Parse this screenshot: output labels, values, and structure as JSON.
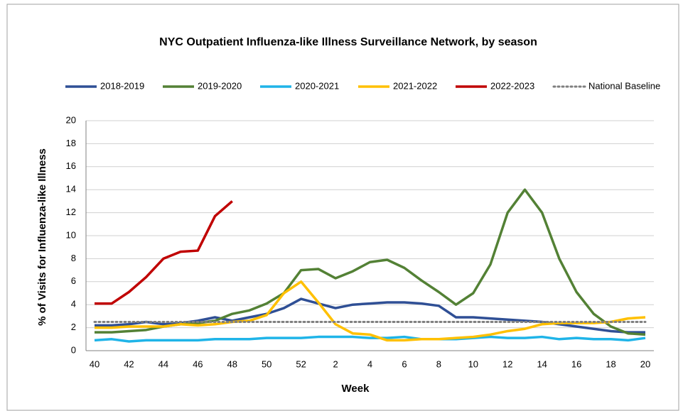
{
  "chart_data": {
    "type": "line",
    "title": "NYC Outpatient Influenza-like Illness Surveillance Network, by season",
    "x_label": "Week",
    "y_label": "% of Visits for Influenza-like Illness",
    "categories": [
      "40",
      null,
      "42",
      null,
      "44",
      null,
      "46",
      null,
      "48",
      null,
      "50",
      null,
      "52",
      null,
      "2",
      null,
      "4",
      null,
      "6",
      null,
      "8",
      null,
      "10",
      null,
      "12",
      null,
      "14",
      null,
      "16",
      null,
      "18",
      null,
      "20"
    ],
    "ylim": [
      0,
      20
    ],
    "yticks": [
      0,
      2,
      4,
      6,
      8,
      10,
      12,
      14,
      16,
      18,
      20
    ],
    "grid": true,
    "series": [
      {
        "name": "2018-2019",
        "color": "#2f4f95",
        "values": [
          2.2,
          2.2,
          2.3,
          2.5,
          2.3,
          2.4,
          2.6,
          2.9,
          2.6,
          2.9,
          3.2,
          3.7,
          4.5,
          4.1,
          3.7,
          4.0,
          4.1,
          4.2,
          4.2,
          4.1,
          3.9,
          2.9,
          2.9,
          2.8,
          2.7,
          2.6,
          2.5,
          2.3,
          2.1,
          1.9,
          1.7,
          1.6,
          1.6
        ]
      },
      {
        "name": "2019-2020",
        "color": "#538135",
        "values": [
          1.6,
          1.6,
          1.7,
          1.8,
          2.1,
          2.3,
          2.4,
          2.6,
          3.2,
          3.5,
          4.1,
          5.0,
          7.0,
          7.1,
          6.3,
          6.9,
          7.7,
          7.9,
          7.2,
          6.1,
          5.1,
          4.0,
          5.0,
          7.5,
          12.0,
          14.0,
          12.0,
          8.0,
          5.1,
          3.2,
          2.1,
          1.5,
          1.4
        ]
      },
      {
        "name": "2020-2021",
        "color": "#1fb4e8",
        "values": [
          0.9,
          1.0,
          0.8,
          0.9,
          0.9,
          0.9,
          0.9,
          1.0,
          1.0,
          1.0,
          1.1,
          1.1,
          1.1,
          1.2,
          1.2,
          1.2,
          1.1,
          1.1,
          1.2,
          1.0,
          1.0,
          1.0,
          1.1,
          1.2,
          1.1,
          1.1,
          1.2,
          1.0,
          1.1,
          1.0,
          1.0,
          0.9,
          1.1
        ]
      },
      {
        "name": "2021-2022",
        "color": "#ffc000",
        "values": [
          2.0,
          2.0,
          2.1,
          2.1,
          2.1,
          2.3,
          2.2,
          2.3,
          2.5,
          2.6,
          3.1,
          5.0,
          6.0,
          4.2,
          2.3,
          1.5,
          1.4,
          0.9,
          0.9,
          1.0,
          1.0,
          1.1,
          1.2,
          1.4,
          1.7,
          1.9,
          2.3,
          2.4,
          2.4,
          2.4,
          2.5,
          2.8,
          2.9
        ]
      },
      {
        "name": "2022-2023",
        "color": "#c00000",
        "values": [
          4.1,
          4.1,
          5.1,
          6.4,
          8.0,
          8.6,
          8.7,
          11.7,
          13.0,
          null,
          null,
          null,
          null,
          null,
          null,
          null,
          null,
          null,
          null,
          null,
          null,
          null,
          null,
          null,
          null,
          null,
          null,
          null,
          null,
          null,
          null,
          null,
          null
        ]
      },
      {
        "name": "National Baseline",
        "color": "#7f7f7f",
        "dash": "dotted",
        "values": [
          2.5,
          2.5,
          2.5,
          2.5,
          2.5,
          2.5,
          2.5,
          2.5,
          2.5,
          2.5,
          2.5,
          2.5,
          2.5,
          2.5,
          2.5,
          2.5,
          2.5,
          2.5,
          2.5,
          2.5,
          2.5,
          2.5,
          2.5,
          2.5,
          2.5,
          2.5,
          2.5,
          2.5,
          2.5,
          2.5,
          2.5,
          2.5,
          2.5
        ]
      }
    ]
  }
}
